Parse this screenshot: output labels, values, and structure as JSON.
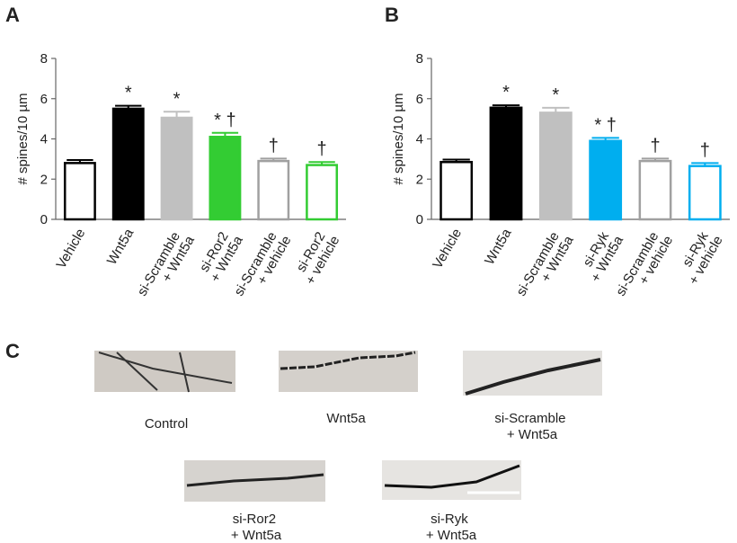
{
  "chart_data": [
    {
      "type": "bar",
      "panel": "A",
      "ylabel": "# spines/10 µm",
      "categories": [
        "Vehicle",
        "Wnt5a",
        "si-Scramble + Wnt5a",
        "si-Ror2 + Wnt5a",
        "si-Scramble + vehicle",
        "si-Ror2 + vehicle"
      ],
      "values": [
        2.8,
        5.5,
        5.05,
        4.1,
        2.9,
        2.7
      ],
      "errors": [
        0.15,
        0.15,
        0.3,
        0.2,
        0.12,
        0.15
      ],
      "annotations": [
        null,
        "*",
        "*",
        "* †",
        "†",
        "†"
      ],
      "fills": [
        "#ffffff",
        "#000000",
        "#c0c0c0",
        "#33cc33",
        "#ffffff",
        "#ffffff"
      ],
      "edges": [
        "#000000",
        "#000000",
        "#c0c0c0",
        "#33cc33",
        "#a0a0a0",
        "#33cc33"
      ],
      "ylim": [
        0,
        8
      ],
      "yticks": [
        0,
        2,
        4,
        6,
        8
      ]
    },
    {
      "type": "bar",
      "panel": "B",
      "ylabel": "# spines/10 µm",
      "categories": [
        "Vehicle",
        "Wnt5a",
        "si-Scramble + Wnt5a",
        "si-Ryk + Wnt5a",
        "si-Scramble + vehicle",
        "si-Ryk + vehicle"
      ],
      "values": [
        2.85,
        5.55,
        5.3,
        3.9,
        2.9,
        2.65
      ],
      "errors": [
        0.12,
        0.12,
        0.25,
        0.15,
        0.12,
        0.15
      ],
      "annotations": [
        null,
        "*",
        "*",
        "* †",
        "†",
        "†"
      ],
      "fills": [
        "#ffffff",
        "#000000",
        "#c0c0c0",
        "#00aeef",
        "#ffffff",
        "#ffffff"
      ],
      "edges": [
        "#000000",
        "#000000",
        "#c0c0c0",
        "#00aeef",
        "#a0a0a0",
        "#00aeef"
      ],
      "ylim": [
        0,
        8
      ],
      "yticks": [
        0,
        2,
        4,
        6,
        8
      ]
    }
  ],
  "panel_c": {
    "label": "C",
    "captions": [
      "Control",
      "Wnt5a",
      "si-Scramble + Wnt5a",
      "si-Ror2 + Wnt5a",
      "si-Ryk + Wnt5a"
    ]
  }
}
